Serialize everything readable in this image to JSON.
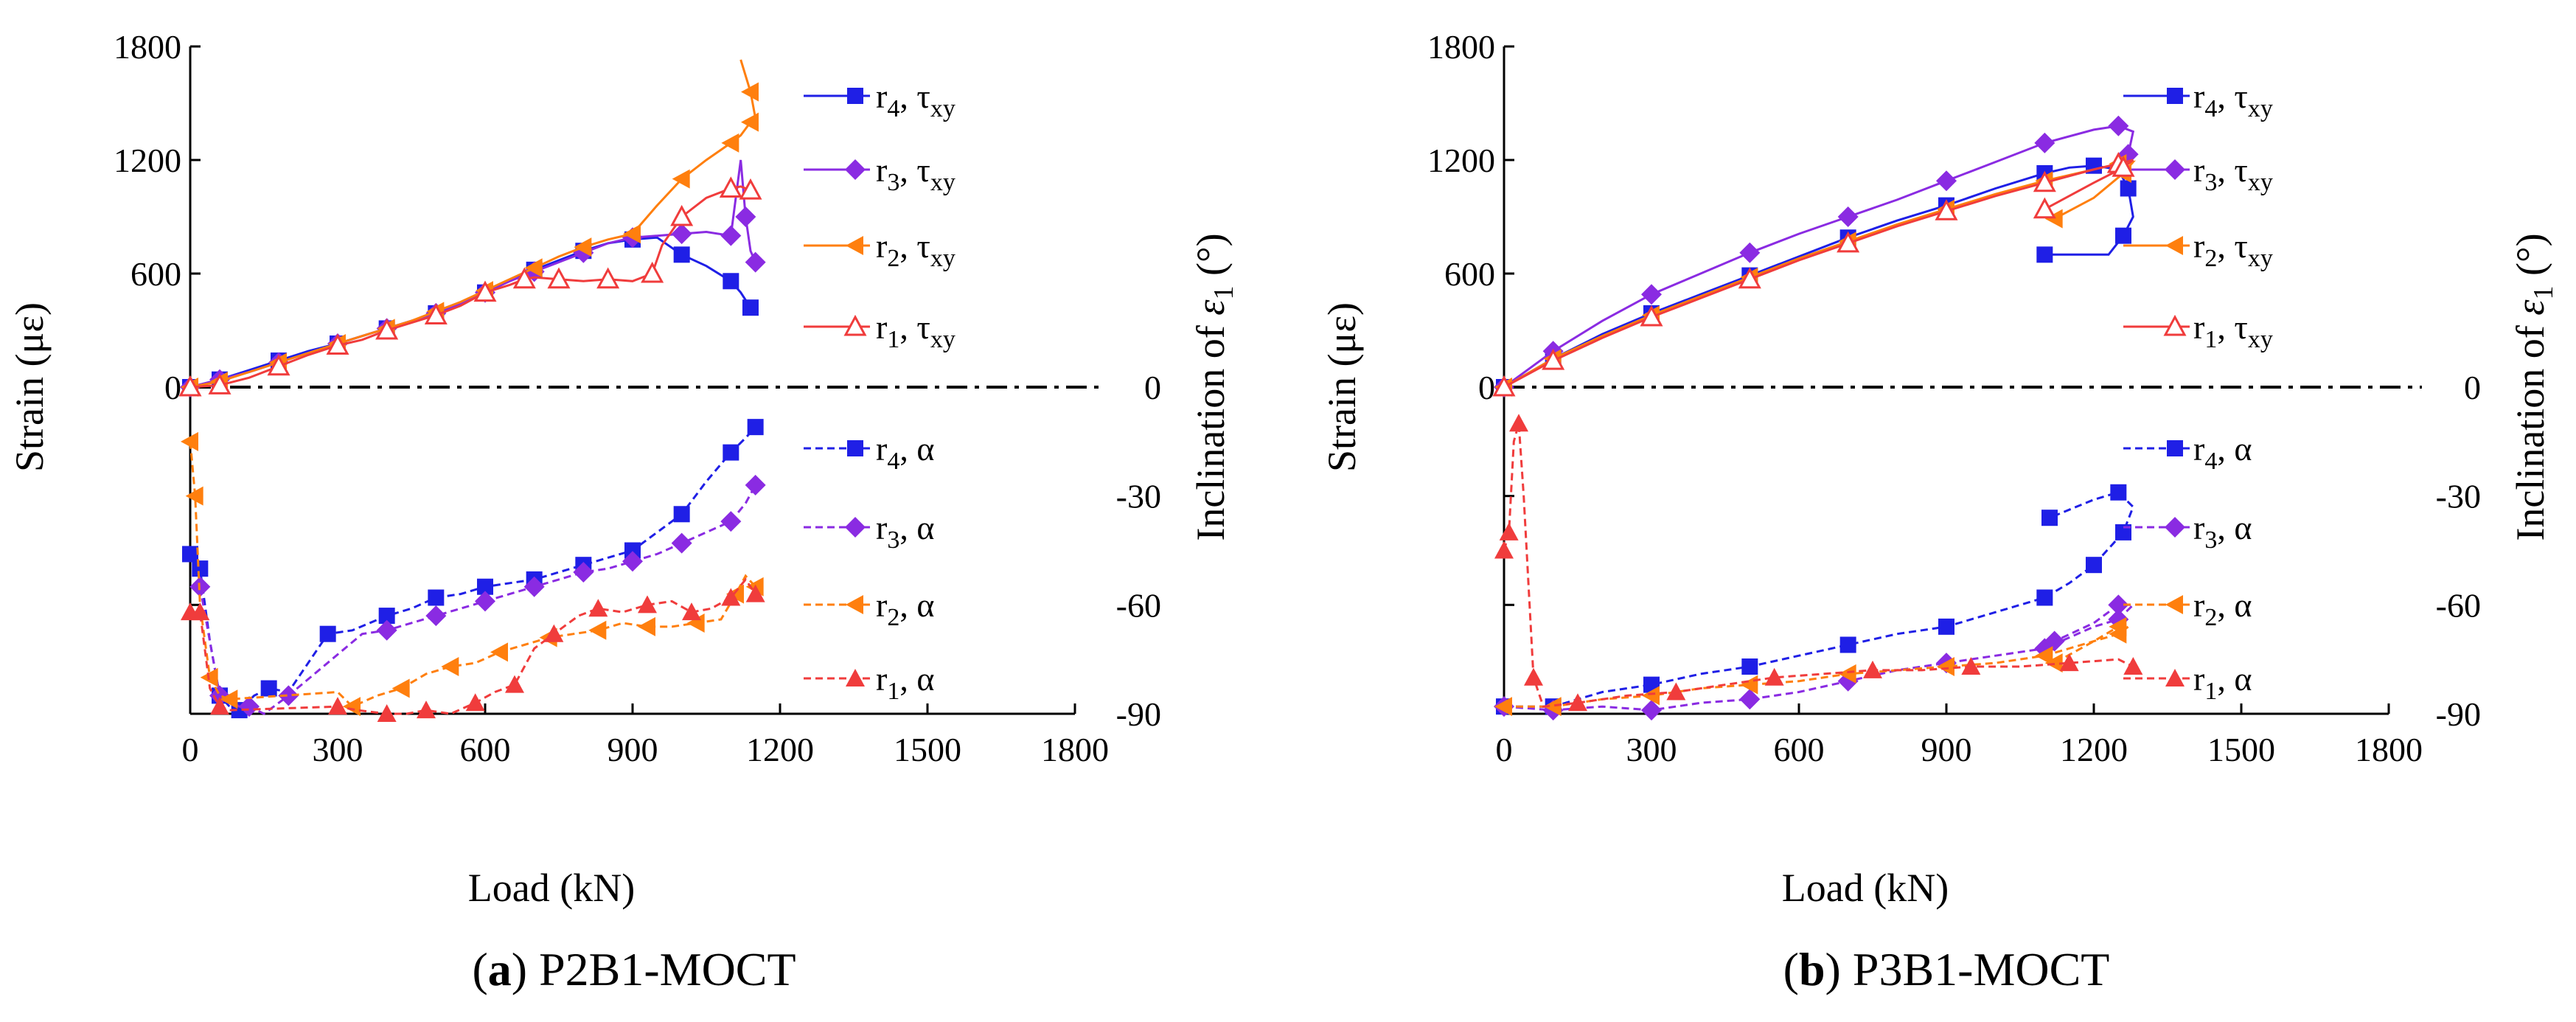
{
  "chart_data": [
    {
      "type": "line",
      "caption_letter": "a",
      "caption_text": "P2B1-MOCT",
      "caption_open": "(",
      "caption_close": ")",
      "xlabel": "Load (kN)",
      "ylabel_left": "Strain (με)",
      "ylabel_right_prefix": "Inclination of ",
      "ylabel_right_symbol": "ε",
      "ylabel_right_sub": "1",
      "ylabel_right_suffix": " (°)",
      "xlim": [
        0,
        1800
      ],
      "x_ticks": [
        "0",
        "300",
        "600",
        "900",
        "1200",
        "1500",
        "1800"
      ],
      "ylim_left": [
        0,
        1800
      ],
      "y_left_ticks": [
        "0",
        "600",
        "1200",
        "1800"
      ],
      "ylim_right": [
        -90,
        0
      ],
      "y_right_ticks": [
        "0",
        "-30",
        "-60",
        "-90"
      ],
      "series": [
        {
          "name": "r4, τxy",
          "label_main": "r",
          "label_sub": "4",
          "label_sep": ", τ",
          "label_sub2": "xy",
          "color": "#1f1fe6",
          "marker": "square",
          "style": "solid",
          "axis": "left",
          "x": [
            0,
            60,
            120,
            180,
            240,
            300,
            350,
            400,
            450,
            500,
            550,
            600,
            650,
            700,
            750,
            800,
            850,
            900,
            950,
            1000,
            1050,
            1100,
            1120,
            1140,
            1150
          ],
          "y": [
            0,
            40,
            90,
            140,
            190,
            230,
            270,
            310,
            350,
            390,
            440,
            500,
            560,
            620,
            670,
            720,
            760,
            780,
            790,
            700,
            640,
            560,
            500,
            420,
            390
          ]
        },
        {
          "name": "r3, τxy",
          "label_main": "r",
          "label_sub": "3",
          "label_sep": ", τ",
          "label_sub2": "xy",
          "color": "#8a2be2",
          "marker": "diamond",
          "style": "solid",
          "axis": "left",
          "x": [
            0,
            60,
            120,
            180,
            240,
            300,
            350,
            400,
            450,
            500,
            550,
            600,
            650,
            700,
            750,
            800,
            850,
            900,
            950,
            1000,
            1050,
            1100,
            1120,
            1130,
            1140,
            1150
          ],
          "y": [
            0,
            40,
            80,
            130,
            180,
            230,
            270,
            310,
            350,
            390,
            440,
            500,
            560,
            610,
            660,
            710,
            760,
            790,
            800,
            810,
            820,
            800,
            1200,
            900,
            720,
            660
          ]
        },
        {
          "name": "r2, τxy",
          "label_main": "r",
          "label_sub": "2",
          "label_sep": ", τ",
          "label_sub2": "xy",
          "color": "#ff7f0e",
          "marker": "triangle-left",
          "style": "solid",
          "axis": "left",
          "x": [
            0,
            60,
            120,
            180,
            240,
            300,
            350,
            400,
            450,
            500,
            550,
            600,
            650,
            700,
            750,
            800,
            850,
            900,
            950,
            1000,
            1050,
            1100,
            1120,
            1140,
            1150,
            1140,
            1120
          ],
          "y": [
            0,
            30,
            80,
            130,
            180,
            230,
            270,
            310,
            350,
            400,
            450,
            510,
            570,
            630,
            690,
            740,
            780,
            810,
            960,
            1100,
            1200,
            1290,
            1330,
            1400,
            1420,
            1560,
            1730
          ]
        },
        {
          "name": "r1, τxy",
          "label_main": "r",
          "label_sub": "1",
          "label_sep": ", τ",
          "label_sub2": "xy",
          "color": "#f03c3c",
          "marker": "triangle-up-open",
          "style": "solid",
          "axis": "left",
          "x": [
            0,
            60,
            120,
            180,
            240,
            300,
            350,
            400,
            450,
            500,
            550,
            600,
            650,
            680,
            700,
            750,
            800,
            850,
            900,
            940,
            960,
            1000,
            1050,
            1100,
            1120,
            1140,
            1150
          ],
          "y": [
            0,
            10,
            50,
            110,
            170,
            220,
            250,
            300,
            340,
            380,
            430,
            500,
            540,
            570,
            580,
            570,
            560,
            570,
            560,
            600,
            750,
            900,
            1000,
            1050,
            1060,
            1040,
            1030
          ]
        },
        {
          "name": "r4, α",
          "label_main": "r",
          "label_sub": "4",
          "label_sep": ", α",
          "label_sub2": "",
          "color": "#1f1fe6",
          "marker": "square",
          "style": "dashed",
          "axis": "right",
          "x": [
            0,
            20,
            40,
            60,
            80,
            100,
            130,
            160,
            200,
            280,
            330,
            400,
            450,
            500,
            550,
            600,
            650,
            700,
            750,
            800,
            850,
            900,
            950,
            1000,
            1050,
            1100,
            1130,
            1150
          ],
          "y": [
            -46,
            -50,
            -70,
            -85,
            -88,
            -89,
            -85,
            -83,
            -84,
            -68,
            -67,
            -63,
            -61,
            -58,
            -57,
            -55,
            -54,
            -53,
            -51,
            -49,
            -47,
            -45,
            -40,
            -35,
            -26,
            -18,
            -14,
            -11
          ]
        },
        {
          "name": "r3, α",
          "label_main": "r",
          "label_sub": "3",
          "label_sep": ", α",
          "label_sub2": "",
          "color": "#8a2be2",
          "marker": "diamond",
          "style": "dashed",
          "axis": "right",
          "x": [
            20,
            60,
            100,
            120,
            150,
            200,
            350,
            400,
            450,
            500,
            550,
            600,
            650,
            700,
            750,
            800,
            850,
            900,
            950,
            1000,
            1050,
            1100,
            1130,
            1150
          ],
          "y": [
            -55,
            -85,
            -88,
            -88,
            -90,
            -85,
            -68,
            -67,
            -65,
            -63,
            -61,
            -59,
            -57,
            -55,
            -53,
            -51,
            -50,
            -48,
            -46,
            -43,
            -40,
            -37,
            -32,
            -27
          ]
        },
        {
          "name": "r2, α",
          "label_main": "r",
          "label_sub": "2",
          "label_sep": ", α",
          "label_sub2": "",
          "color": "#ff7f0e",
          "marker": "triangle-left",
          "style": "dashed",
          "axis": "right",
          "x": [
            0,
            10,
            20,
            40,
            60,
            80,
            300,
            330,
            380,
            430,
            480,
            530,
            580,
            630,
            680,
            730,
            780,
            830,
            880,
            930,
            980,
            1030,
            1080,
            1110,
            1130,
            1150
          ],
          "y": [
            -15,
            -30,
            -60,
            -80,
            -85,
            -86,
            -84,
            -88,
            -85,
            -83,
            -79,
            -77,
            -76,
            -73,
            -71,
            -69,
            -68,
            -67,
            -65,
            -66,
            -66,
            -65,
            -64,
            -57,
            -52,
            -55
          ]
        },
        {
          "name": "r1, α",
          "label_main": "r",
          "label_sub": "1",
          "label_sep": ", α",
          "label_sub2": "",
          "color": "#f03c3c",
          "marker": "triangle-up",
          "style": "dashed",
          "axis": "right",
          "x": [
            0,
            20,
            40,
            60,
            80,
            300,
            340,
            400,
            440,
            480,
            530,
            580,
            620,
            660,
            700,
            740,
            790,
            830,
            880,
            930,
            980,
            1020,
            1060,
            1100,
            1130,
            1150
          ],
          "y": [
            -62,
            -62,
            -83,
            -88,
            -89,
            -88,
            -89,
            -90,
            -90,
            -89,
            -90,
            -87,
            -84,
            -82,
            -72,
            -68,
            -63,
            -61,
            -62,
            -60,
            -59,
            -62,
            -61,
            -58,
            -53,
            -57
          ]
        }
      ]
    },
    {
      "type": "line",
      "caption_letter": "b",
      "caption_text": "P3B1-MOCT",
      "caption_open": "(",
      "caption_close": ")",
      "xlabel": "Load (kN)",
      "ylabel_left": "Strain (με)",
      "ylabel_right_prefix": "Inclination of ",
      "ylabel_right_symbol": "ε",
      "ylabel_right_sub": "1",
      "ylabel_right_suffix": " (°)",
      "xlim": [
        0,
        1800
      ],
      "x_ticks": [
        "0",
        "300",
        "600",
        "900",
        "1200",
        "1500",
        "1800"
      ],
      "ylim_left": [
        0,
        1800
      ],
      "y_left_ticks": [
        "0",
        "600",
        "1200",
        "1800"
      ],
      "ylim_right": [
        -90,
        0
      ],
      "y_right_ticks": [
        "0",
        "-30",
        "-60",
        "-90"
      ],
      "series": [
        {
          "name": "r4, τxy",
          "label_main": "r",
          "label_sub": "4",
          "label_sep": ", τ",
          "label_sub2": "xy",
          "color": "#1f1fe6",
          "marker": "square",
          "style": "solid",
          "axis": "left",
          "x": [
            0,
            100,
            200,
            300,
            400,
            500,
            600,
            700,
            800,
            900,
            1000,
            1100,
            1150,
            1200,
            1250,
            1270,
            1280,
            1260,
            1230,
            1100
          ],
          "y": [
            0,
            150,
            280,
            390,
            490,
            590,
            690,
            790,
            880,
            960,
            1050,
            1130,
            1160,
            1170,
            1150,
            1050,
            900,
            800,
            700,
            700
          ]
        },
        {
          "name": "r3, τxy",
          "label_main": "r",
          "label_sub": "3",
          "label_sep": ", τ",
          "label_sub2": "xy",
          "color": "#8a2be2",
          "marker": "diamond",
          "style": "solid",
          "axis": "left",
          "x": [
            0,
            100,
            200,
            300,
            400,
            500,
            600,
            700,
            800,
            900,
            1000,
            1100,
            1200,
            1250,
            1280,
            1270,
            1240
          ],
          "y": [
            0,
            190,
            350,
            490,
            600,
            710,
            810,
            900,
            990,
            1090,
            1190,
            1290,
            1360,
            1380,
            1350,
            1230,
            1130
          ]
        },
        {
          "name": "r2, τxy",
          "label_main": "r",
          "label_sub": "2",
          "label_sep": ", τ",
          "label_sub2": "xy",
          "color": "#ff7f0e",
          "marker": "triangle-left",
          "style": "solid",
          "axis": "left",
          "x": [
            0,
            100,
            200,
            300,
            400,
            500,
            600,
            700,
            800,
            900,
            1000,
            1100,
            1200,
            1250,
            1280,
            1260,
            1200,
            1120
          ],
          "y": [
            0,
            150,
            270,
            380,
            480,
            580,
            680,
            770,
            860,
            940,
            1020,
            1090,
            1150,
            1180,
            1190,
            1130,
            1000,
            890
          ]
        },
        {
          "name": "r1, τxy",
          "label_main": "r",
          "label_sub": "1",
          "label_sep": ", τ",
          "label_sub2": "xy",
          "color": "#f03c3c",
          "marker": "triangle-up-open",
          "style": "solid",
          "axis": "left",
          "x": [
            0,
            100,
            200,
            300,
            400,
            500,
            600,
            700,
            800,
            900,
            1000,
            1100,
            1200,
            1250,
            1280,
            1260,
            1200,
            1100
          ],
          "y": [
            0,
            140,
            260,
            370,
            470,
            570,
            670,
            760,
            850,
            930,
            1010,
            1080,
            1150,
            1180,
            1200,
            1160,
            1080,
            940
          ]
        },
        {
          "name": "r4, α",
          "label_main": "r",
          "label_sub": "4",
          "label_sep": ", α",
          "label_sub2": "",
          "color": "#1f1fe6",
          "marker": "square",
          "style": "dashed",
          "axis": "right",
          "x": [
            0,
            100,
            200,
            300,
            400,
            500,
            600,
            700,
            800,
            900,
            1000,
            1100,
            1150,
            1200,
            1240,
            1260,
            1280,
            1250,
            1200,
            1110
          ],
          "y": [
            -88,
            -88,
            -84,
            -82,
            -79,
            -77,
            -74,
            -71,
            -68,
            -66,
            -62,
            -58,
            -54,
            -49,
            -43,
            -40,
            -33,
            -29,
            -31,
            -36
          ]
        },
        {
          "name": "r3, α",
          "label_main": "r",
          "label_sub": "3",
          "label_sep": ", α",
          "label_sub2": "",
          "color": "#8a2be2",
          "marker": "diamond",
          "style": "dashed",
          "axis": "right",
          "x": [
            0,
            100,
            200,
            300,
            400,
            500,
            600,
            700,
            800,
            900,
            1000,
            1100,
            1200,
            1250,
            1280,
            1250,
            1200,
            1120
          ],
          "y": [
            -88,
            -89,
            -88,
            -89,
            -87,
            -86,
            -84,
            -81,
            -78,
            -76,
            -74,
            -72,
            -66,
            -64,
            -60,
            -60,
            -65,
            -70
          ]
        },
        {
          "name": "r2, α",
          "label_main": "r",
          "label_sub": "2",
          "label_sep": ", α",
          "label_sub2": "",
          "color": "#ff7f0e",
          "marker": "triangle-left",
          "style": "dashed",
          "axis": "right",
          "x": [
            0,
            100,
            200,
            300,
            400,
            500,
            600,
            700,
            800,
            900,
            1000,
            1100,
            1200,
            1250,
            1270,
            1250,
            1200,
            1120
          ],
          "y": [
            -88,
            -88,
            -86,
            -85,
            -83,
            -82,
            -81,
            -79,
            -78,
            -77,
            -76,
            -74,
            -70,
            -68,
            -66,
            -66,
            -70,
            -76
          ]
        },
        {
          "name": "r1, α",
          "label_main": "r",
          "label_sub": "1",
          "label_sep": ", α",
          "label_sub2": "",
          "color": "#f03c3c",
          "marker": "triangle-up",
          "style": "dashed",
          "axis": "right",
          "x": [
            0,
            10,
            20,
            30,
            40,
            60,
            80,
            150,
            250,
            350,
            450,
            550,
            650,
            750,
            850,
            950,
            1050,
            1150,
            1250,
            1280
          ],
          "y": [
            -45,
            -40,
            -15,
            -10,
            -30,
            -80,
            -88,
            -87,
            -85,
            -84,
            -82,
            -80,
            -79,
            -78,
            -78,
            -77,
            -77,
            -76,
            -75,
            -77
          ]
        }
      ]
    }
  ]
}
